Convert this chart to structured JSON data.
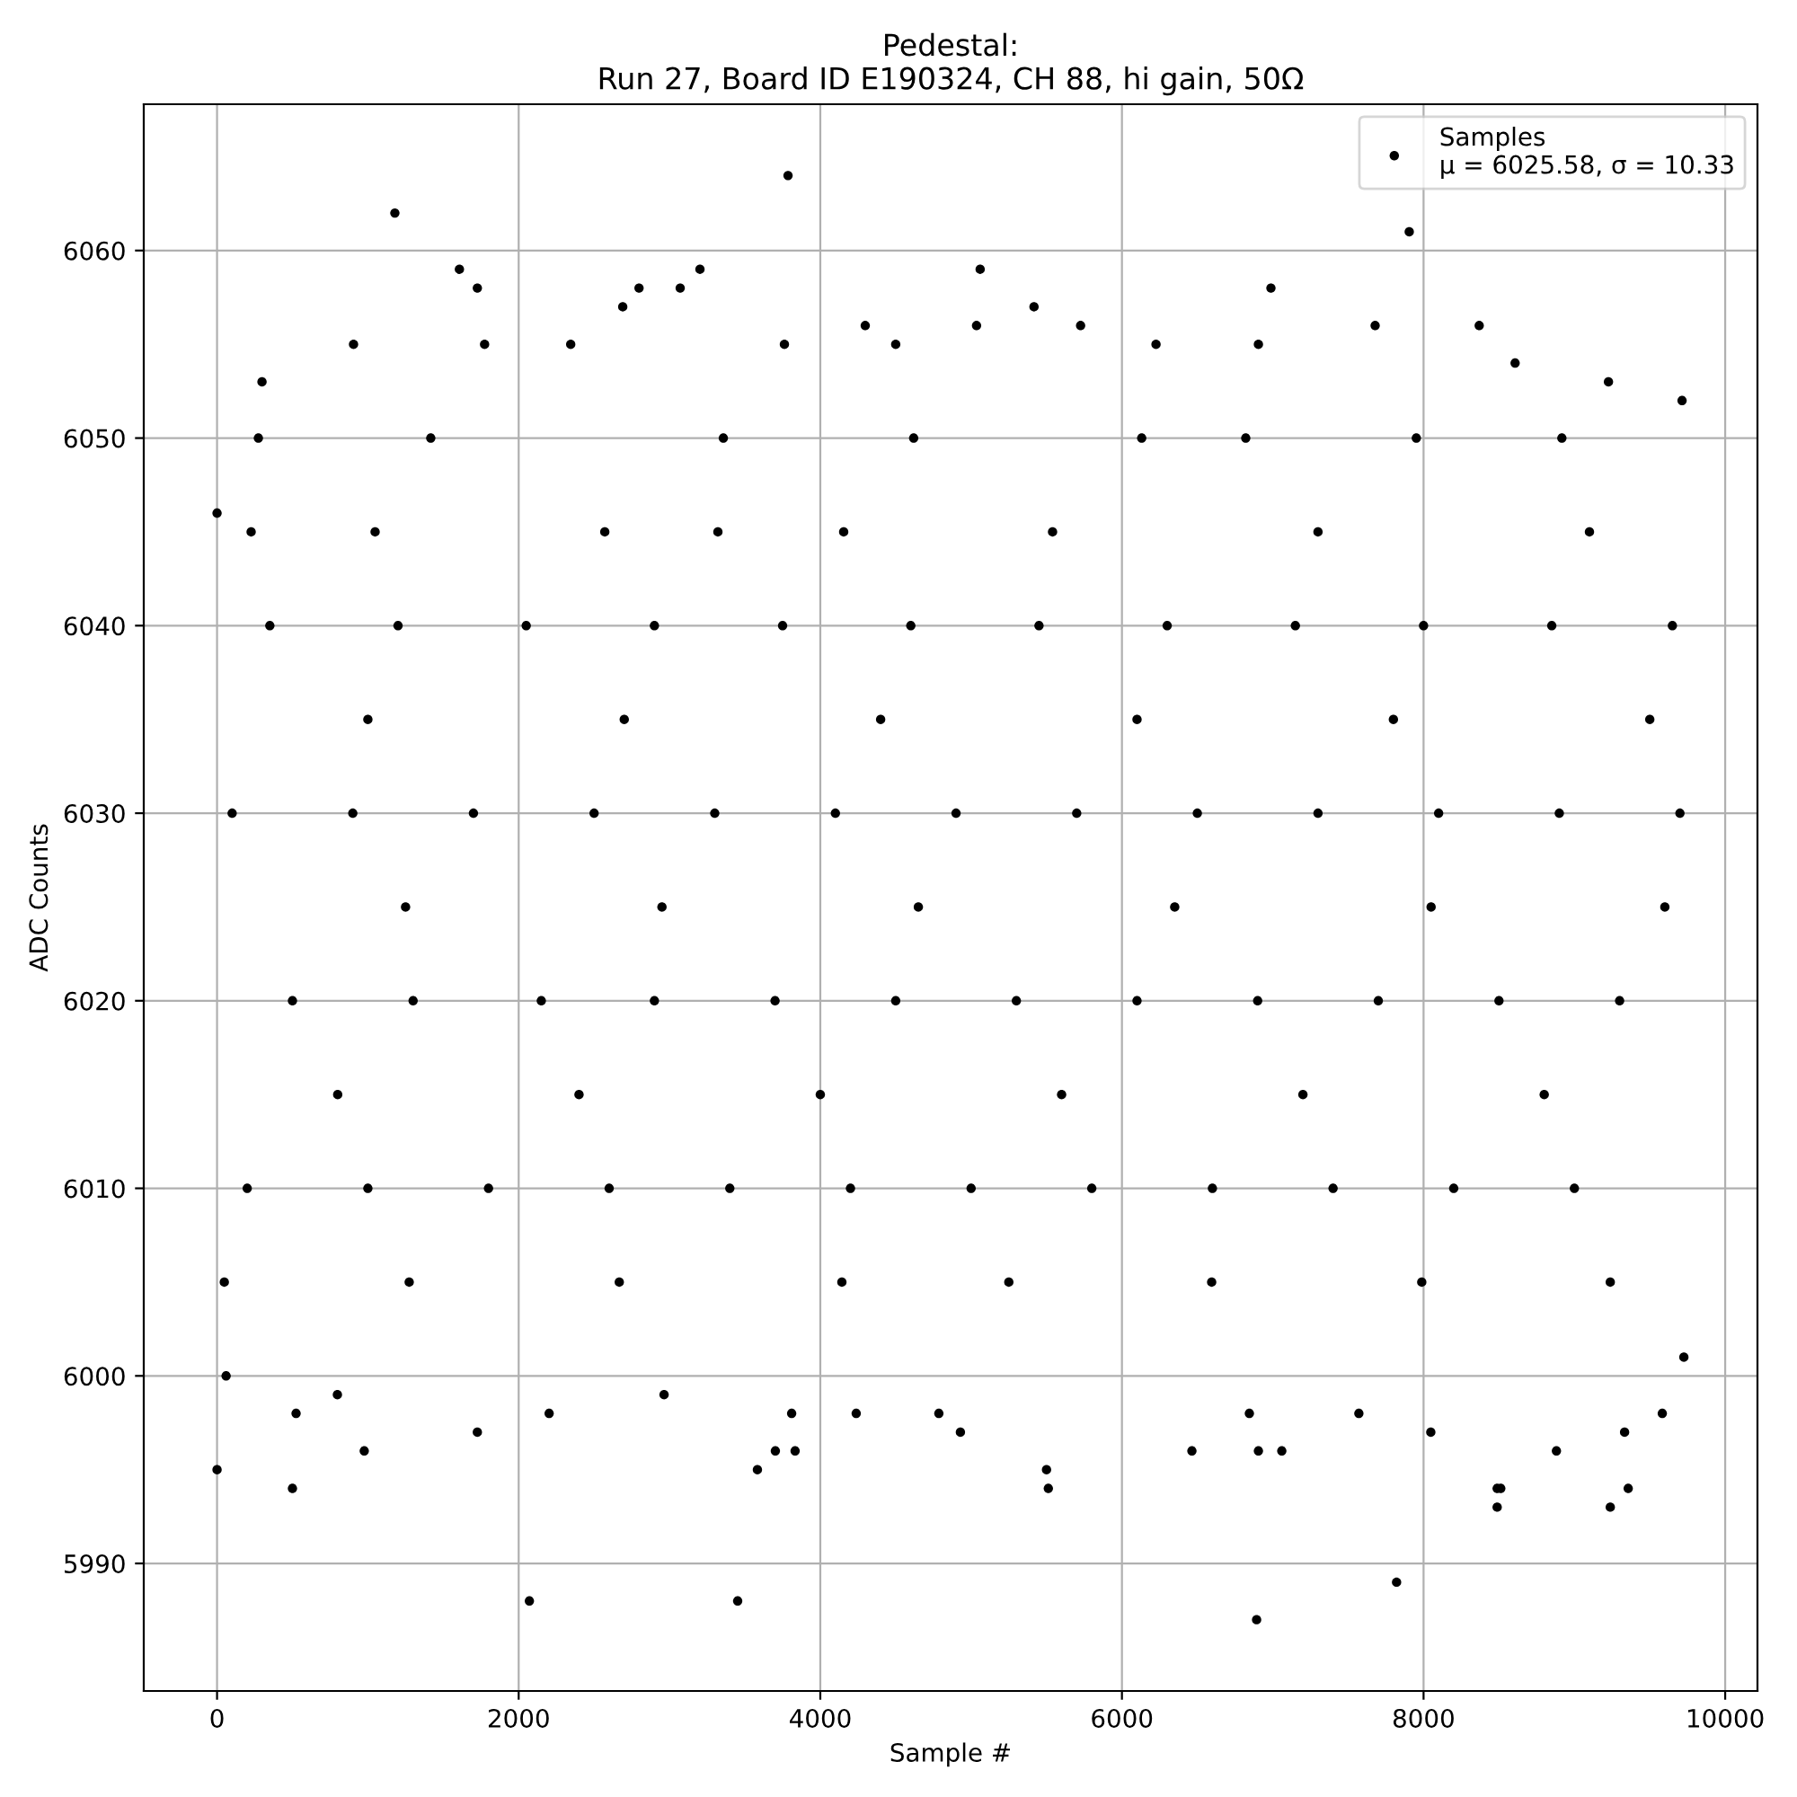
{
  "chart_data": {
    "type": "scatter",
    "title": "Pedestal:\nRun 27, Board ID E190324, CH 88, hi gain, 50Ω",
    "xlabel": "Sample #",
    "ylabel": "ADC Counts",
    "xlim": [
      -486,
      10214
    ],
    "ylim": [
      5983.2,
      6067.8
    ],
    "xticks": [
      0,
      2000,
      4000,
      6000,
      8000,
      10000
    ],
    "yticks": [
      5990,
      6000,
      6010,
      6020,
      6030,
      6040,
      6050,
      6060
    ],
    "grid": true,
    "legend": "top right",
    "marker": "circle",
    "series": [
      {
        "name": "Samples\nμ = 6025.58, σ = 10.33",
        "color": "#000000",
        "x": [
          1179,
          1607,
          1726,
          905,
          1774,
          2690,
          2798,
          3071,
          3202,
          3786,
          3762,
          4298,
          2345,
          298,
          4500,
          5060,
          5036,
          5417,
          5726,
          6988,
          7679,
          7905,
          8369,
          9714,
          6905,
          6226,
          8607,
          9226,
          0,
          60,
          524,
          500,
          976,
          1726,
          2071,
          2202,
          3452,
          3583,
          3702,
          3833,
          3810,
          4238,
          4786,
          798,
          2964,
          4929,
          5500,
          5512,
          6464,
          6905,
          7060,
          6893,
          7821,
          8048,
          8488,
          8512,
          8488,
          8881,
          9238,
          9357,
          9333,
          9583,
          7571,
          6845,
          9726,
          0,
          274,
          1417,
          3357,
          4619,
          6131,
          6821,
          7952,
          8917,
          226,
          1048,
          2571,
          3321,
          4155,
          5540,
          7300,
          9100,
          350,
          1200,
          2050,
          2900,
          3750,
          4600,
          5450,
          6300,
          7150,
          8000,
          8850,
          9650,
          1000,
          2700,
          4400,
          6100,
          7800,
          9500,
          100,
          900,
          1700,
          2500,
          3300,
          4100,
          4900,
          5700,
          6500,
          7300,
          8100,
          8900,
          9700,
          1250,
          2950,
          4650,
          6350,
          8050,
          9600,
          500,
          1300,
          2150,
          2900,
          3700,
          4500,
          5300,
          6100,
          6900,
          7700,
          8500,
          9300,
          800,
          2400,
          4000,
          5600,
          7200,
          8800,
          200,
          1000,
          1800,
          2600,
          3400,
          4200,
          5000,
          5800,
          6600,
          7400,
          8200,
          9000,
          48,
          1274,
          2667,
          4143,
          5250,
          6595,
          7988,
          9238
        ],
        "values": [
          6062,
          6059,
          6058,
          6055,
          6055,
          6057,
          6058,
          6058,
          6059,
          6064,
          6055,
          6056,
          6055,
          6053,
          6055,
          6059,
          6056,
          6057,
          6056,
          6058,
          6056,
          6061,
          6056,
          6052,
          6055,
          6055,
          6054,
          6053,
          5995,
          6000,
          5998,
          5994,
          5996,
          5997,
          5988,
          5998,
          5988,
          5995,
          5996,
          5996,
          5998,
          5998,
          5998,
          5999,
          5999,
          5997,
          5995,
          5994,
          5996,
          5996,
          5996,
          5987,
          5989,
          5997,
          5994,
          5994,
          5993,
          5996,
          5993,
          5994,
          5997,
          5998,
          5998,
          5998,
          6001,
          6046,
          6050,
          6050,
          6050,
          6050,
          6050,
          6050,
          6050,
          6050,
          6045,
          6045,
          6045,
          6045,
          6045,
          6045,
          6045,
          6045,
          6040,
          6040,
          6040,
          6040,
          6040,
          6040,
          6040,
          6040,
          6040,
          6040,
          6040,
          6040,
          6035,
          6035,
          6035,
          6035,
          6035,
          6035,
          6030,
          6030,
          6030,
          6030,
          6030,
          6030,
          6030,
          6030,
          6030,
          6030,
          6030,
          6030,
          6030,
          6025,
          6025,
          6025,
          6025,
          6025,
          6025,
          6020,
          6020,
          6020,
          6020,
          6020,
          6020,
          6020,
          6020,
          6020,
          6020,
          6020,
          6020,
          6015,
          6015,
          6015,
          6015,
          6015,
          6015,
          6010,
          6010,
          6010,
          6010,
          6010,
          6010,
          6010,
          6010,
          6010,
          6010,
          6010,
          6010,
          6005,
          6005,
          6005,
          6005,
          6005,
          6005,
          6005,
          6005
        ]
      }
    ]
  }
}
